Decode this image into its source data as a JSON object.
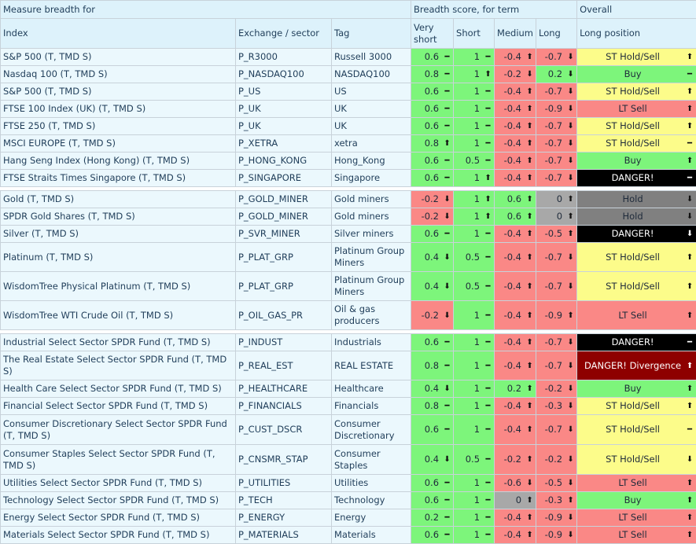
{
  "header": {
    "measure": "Measure breadth for",
    "breadth": "Breadth score, for term",
    "overall": "Overall",
    "index": "Index",
    "exchange": "Exchange / sector",
    "tag": "Tag",
    "very_short": "Very short",
    "short": "Short",
    "medium": "Medium",
    "long": "Long",
    "long_position": "Long position"
  },
  "colors": {
    "green": "#7df57b",
    "red": "#fa8886",
    "gray": "#a8a8a8",
    "yellow": "#fcfc8a",
    "dark_gray": "#808080",
    "black": "#000000",
    "dark_red": "#8e0000"
  },
  "groups": [
    [
      {
        "index": "S&P 500 (T, TMD S)",
        "exchange": "P_R3000",
        "tag": "Russell 3000",
        "vs": {
          "v": "0.6",
          "a": "flat",
          "c": "g"
        },
        "s": {
          "v": "1",
          "a": "flat",
          "c": "g"
        },
        "m": {
          "v": "-0.4",
          "a": "up",
          "c": "r"
        },
        "l": {
          "v": "-0.7",
          "a": "down",
          "c": "r"
        },
        "pos": {
          "t": "ST Hold/Sell",
          "a": "up",
          "c": "y"
        }
      },
      {
        "index": "Nasdaq 100 (T, TMD S)",
        "exchange": "P_NASDAQ100",
        "tag": "NASDAQ100",
        "vs": {
          "v": "0.8",
          "a": "flat",
          "c": "g"
        },
        "s": {
          "v": "1",
          "a": "up",
          "c": "g"
        },
        "m": {
          "v": "-0.2",
          "a": "down",
          "c": "r"
        },
        "l": {
          "v": "0.2",
          "a": "down",
          "c": "g"
        },
        "pos": {
          "t": "Buy",
          "a": "flat",
          "c": "g"
        }
      },
      {
        "index": "S&P 500 (T, TMD S)",
        "exchange": "P_US",
        "tag": "US",
        "vs": {
          "v": "0.6",
          "a": "flat",
          "c": "g"
        },
        "s": {
          "v": "1",
          "a": "flat",
          "c": "g"
        },
        "m": {
          "v": "-0.4",
          "a": "up",
          "c": "r"
        },
        "l": {
          "v": "-0.7",
          "a": "down",
          "c": "r"
        },
        "pos": {
          "t": "ST Hold/Sell",
          "a": "up",
          "c": "y"
        }
      },
      {
        "index": "FTSE 100 Index (UK) (T, TMD S)",
        "exchange": "P_UK",
        "tag": "UK",
        "vs": {
          "v": "0.6",
          "a": "flat",
          "c": "g"
        },
        "s": {
          "v": "1",
          "a": "flat",
          "c": "g"
        },
        "m": {
          "v": "-0.4",
          "a": "up",
          "c": "r"
        },
        "l": {
          "v": "-0.9",
          "a": "down",
          "c": "r"
        },
        "pos": {
          "t": "LT Sell",
          "a": "up",
          "c": "r"
        }
      },
      {
        "index": "FTSE 250 (T, TMD S)",
        "exchange": "P_UK",
        "tag": "UK",
        "vs": {
          "v": "0.6",
          "a": "flat",
          "c": "g"
        },
        "s": {
          "v": "1",
          "a": "flat",
          "c": "g"
        },
        "m": {
          "v": "-0.4",
          "a": "up",
          "c": "r"
        },
        "l": {
          "v": "-0.7",
          "a": "down",
          "c": "r"
        },
        "pos": {
          "t": "ST Hold/Sell",
          "a": "up",
          "c": "y"
        }
      },
      {
        "index": "MSCI EUROPE (T, TMD S)",
        "exchange": "P_XETRA",
        "tag": "xetra",
        "vs": {
          "v": "0.8",
          "a": "up",
          "c": "g"
        },
        "s": {
          "v": "1",
          "a": "flat",
          "c": "g"
        },
        "m": {
          "v": "-0.4",
          "a": "up",
          "c": "r"
        },
        "l": {
          "v": "-0.7",
          "a": "down",
          "c": "r"
        },
        "pos": {
          "t": "ST Hold/Sell",
          "a": "flat",
          "c": "y"
        }
      },
      {
        "index": "Hang Seng Index (Hong Kong) (T, TMD S)",
        "exchange": "P_HONG_KONG",
        "tag": "Hong_Kong",
        "vs": {
          "v": "0.6",
          "a": "flat",
          "c": "g"
        },
        "s": {
          "v": "0.5",
          "a": "flat",
          "c": "g"
        },
        "m": {
          "v": "-0.4",
          "a": "up",
          "c": "r"
        },
        "l": {
          "v": "-0.7",
          "a": "down",
          "c": "r"
        },
        "pos": {
          "t": "Buy",
          "a": "up",
          "c": "g"
        }
      },
      {
        "index": "FTSE Straits Times Singapore (T, TMD S)",
        "exchange": "P_SINGAPORE",
        "tag": "Singapore",
        "vs": {
          "v": "0.6",
          "a": "flat",
          "c": "g"
        },
        "s": {
          "v": "1",
          "a": "up",
          "c": "g"
        },
        "m": {
          "v": "-0.4",
          "a": "up",
          "c": "r"
        },
        "l": {
          "v": "-0.7",
          "a": "down",
          "c": "r"
        },
        "pos": {
          "t": "DANGER!",
          "a": "flat",
          "c": "bk"
        }
      }
    ],
    [
      {
        "index": "Gold (T, TMD S)",
        "exchange": "P_GOLD_MINER",
        "tag": "Gold miners",
        "vs": {
          "v": "-0.2",
          "a": "down",
          "c": "r"
        },
        "s": {
          "v": "1",
          "a": "up",
          "c": "g"
        },
        "m": {
          "v": "0.6",
          "a": "up",
          "c": "g"
        },
        "l": {
          "v": "0",
          "a": "up",
          "c": "gr"
        },
        "pos": {
          "t": "Hold",
          "a": "down",
          "c": "dg"
        }
      },
      {
        "index": "SPDR Gold Shares (T, TMD S)",
        "exchange": "P_GOLD_MINER",
        "tag": "Gold miners",
        "vs": {
          "v": "-0.2",
          "a": "down",
          "c": "r"
        },
        "s": {
          "v": "1",
          "a": "up",
          "c": "g"
        },
        "m": {
          "v": "0.6",
          "a": "up",
          "c": "g"
        },
        "l": {
          "v": "0",
          "a": "up",
          "c": "gr"
        },
        "pos": {
          "t": "Hold",
          "a": "down",
          "c": "dg"
        }
      },
      {
        "index": "Silver (T, TMD S)",
        "exchange": "P_SVR_MINER",
        "tag": "Silver miners",
        "vs": {
          "v": "0.6",
          "a": "flat",
          "c": "g"
        },
        "s": {
          "v": "1",
          "a": "flat",
          "c": "g"
        },
        "m": {
          "v": "-0.4",
          "a": "up",
          "c": "r"
        },
        "l": {
          "v": "-0.5",
          "a": "up",
          "c": "r"
        },
        "pos": {
          "t": "DANGER!",
          "a": "down",
          "c": "bk"
        }
      },
      {
        "index": "Platinum (T, TMD S)",
        "exchange": "P_PLAT_GRP",
        "tag": "Platinum Group Miners",
        "vs": {
          "v": "0.4",
          "a": "down",
          "c": "g"
        },
        "s": {
          "v": "0.5",
          "a": "flat",
          "c": "g"
        },
        "m": {
          "v": "-0.4",
          "a": "up",
          "c": "r"
        },
        "l": {
          "v": "-0.7",
          "a": "down",
          "c": "r"
        },
        "pos": {
          "t": "ST Hold/Sell",
          "a": "up",
          "c": "y"
        }
      },
      {
        "index": "WisdomTree Physical Platinum (T, TMD S)",
        "exchange": "P_PLAT_GRP",
        "tag": "Platinum Group Miners",
        "vs": {
          "v": "0.4",
          "a": "down",
          "c": "g"
        },
        "s": {
          "v": "0.5",
          "a": "flat",
          "c": "g"
        },
        "m": {
          "v": "-0.4",
          "a": "up",
          "c": "r"
        },
        "l": {
          "v": "-0.7",
          "a": "down",
          "c": "r"
        },
        "pos": {
          "t": "ST Hold/Sell",
          "a": "up",
          "c": "y"
        }
      },
      {
        "index": "WisdomTree WTI Crude Oil (T, TMD S)",
        "exchange": "P_OIL_GAS_PR",
        "tag": "Oil & gas producers",
        "vs": {
          "v": "-0.2",
          "a": "down",
          "c": "r"
        },
        "s": {
          "v": "1",
          "a": "flat",
          "c": "g"
        },
        "m": {
          "v": "-0.4",
          "a": "up",
          "c": "r"
        },
        "l": {
          "v": "-0.9",
          "a": "up",
          "c": "r"
        },
        "pos": {
          "t": "LT Sell",
          "a": "up",
          "c": "r"
        }
      }
    ],
    [
      {
        "index": "Industrial Select Sector SPDR Fund (T, TMD S)",
        "exchange": "P_INDUST",
        "tag": "Industrials",
        "vs": {
          "v": "0.6",
          "a": "flat",
          "c": "g"
        },
        "s": {
          "v": "1",
          "a": "flat",
          "c": "g"
        },
        "m": {
          "v": "-0.4",
          "a": "up",
          "c": "r"
        },
        "l": {
          "v": "-0.7",
          "a": "down",
          "c": "r"
        },
        "pos": {
          "t": "DANGER!",
          "a": "flat",
          "c": "bk"
        }
      },
      {
        "index": "The Real Estate Select Sector SPDR Fund (T, TMD S)",
        "exchange": "P_REAL_EST",
        "tag": "REAL ESTATE",
        "vs": {
          "v": "0.8",
          "a": "flat",
          "c": "g"
        },
        "s": {
          "v": "1",
          "a": "flat",
          "c": "g"
        },
        "m": {
          "v": "-0.4",
          "a": "up",
          "c": "r"
        },
        "l": {
          "v": "-0.7",
          "a": "down",
          "c": "r"
        },
        "pos": {
          "t": "DANGER! Divergence",
          "a": "up",
          "c": "dr"
        }
      },
      {
        "index": "Health Care Select Sector SPDR Fund (T, TMD S)",
        "exchange": "P_HEALTHCARE",
        "tag": "Healthcare",
        "vs": {
          "v": "0.4",
          "a": "down",
          "c": "g"
        },
        "s": {
          "v": "1",
          "a": "flat",
          "c": "g"
        },
        "m": {
          "v": "0.2",
          "a": "up",
          "c": "g"
        },
        "l": {
          "v": "-0.2",
          "a": "down",
          "c": "r"
        },
        "pos": {
          "t": "Buy",
          "a": "up",
          "c": "g"
        }
      },
      {
        "index": "Financial Select Sector SPDR Fund (T, TMD S)",
        "exchange": "P_FINANCIALS",
        "tag": "Financials",
        "vs": {
          "v": "0.8",
          "a": "flat",
          "c": "g"
        },
        "s": {
          "v": "1",
          "a": "flat",
          "c": "g"
        },
        "m": {
          "v": "-0.4",
          "a": "up",
          "c": "r"
        },
        "l": {
          "v": "-0.3",
          "a": "down",
          "c": "r"
        },
        "pos": {
          "t": "ST Hold/Sell",
          "a": "up",
          "c": "y"
        }
      },
      {
        "index": "Consumer Discretionary Select Sector SPDR Fund (T, TMD S)",
        "exchange": "P_CUST_DSCR",
        "tag": "Consumer Discretionary",
        "vs": {
          "v": "0.6",
          "a": "flat",
          "c": "g"
        },
        "s": {
          "v": "1",
          "a": "flat",
          "c": "g"
        },
        "m": {
          "v": "-0.4",
          "a": "up",
          "c": "r"
        },
        "l": {
          "v": "-0.7",
          "a": "down",
          "c": "r"
        },
        "pos": {
          "t": "ST Hold/Sell",
          "a": "flat",
          "c": "y"
        }
      },
      {
        "index": "Consumer Staples Select Sector SPDR Fund (T, TMD S)",
        "exchange": "P_CNSMR_STAP",
        "tag": "Consumer Staples",
        "vs": {
          "v": "0.4",
          "a": "down",
          "c": "g"
        },
        "s": {
          "v": "0.5",
          "a": "flat",
          "c": "g"
        },
        "m": {
          "v": "-0.2",
          "a": "up",
          "c": "r"
        },
        "l": {
          "v": "-0.2",
          "a": "down",
          "c": "r"
        },
        "pos": {
          "t": "ST Hold/Sell",
          "a": "down",
          "c": "y"
        }
      },
      {
        "index": "Utilities Select Sector SPDR Fund (T, TMD S)",
        "exchange": "P_UTILITIES",
        "tag": "Utilities",
        "vs": {
          "v": "0.6",
          "a": "flat",
          "c": "g"
        },
        "s": {
          "v": "1",
          "a": "flat",
          "c": "g"
        },
        "m": {
          "v": "-0.6",
          "a": "down",
          "c": "r"
        },
        "l": {
          "v": "-0.5",
          "a": "down",
          "c": "r"
        },
        "pos": {
          "t": "LT Sell",
          "a": "up",
          "c": "r"
        }
      },
      {
        "index": "Technology Select Sector SPDR Fund (T, TMD S)",
        "exchange": "P_TECH",
        "tag": "Technology",
        "vs": {
          "v": "0.6",
          "a": "flat",
          "c": "g"
        },
        "s": {
          "v": "1",
          "a": "flat",
          "c": "g"
        },
        "m": {
          "v": "0",
          "a": "up",
          "c": "gr"
        },
        "l": {
          "v": "-0.3",
          "a": "up",
          "c": "r"
        },
        "pos": {
          "t": "Buy",
          "a": "up",
          "c": "g"
        }
      },
      {
        "index": "Energy Select Sector SPDR Fund (T, TMD S)",
        "exchange": "P_ENERGY",
        "tag": "Energy",
        "vs": {
          "v": "0.2",
          "a": "flat",
          "c": "g"
        },
        "s": {
          "v": "1",
          "a": "flat",
          "c": "g"
        },
        "m": {
          "v": "-0.4",
          "a": "up",
          "c": "r"
        },
        "l": {
          "v": "-0.9",
          "a": "down",
          "c": "r"
        },
        "pos": {
          "t": "LT Sell",
          "a": "up",
          "c": "r"
        }
      },
      {
        "index": "Materials Select Sector SPDR Fund (T, TMD S)",
        "exchange": "P_MATERIALS",
        "tag": "Materials",
        "vs": {
          "v": "0.6",
          "a": "flat",
          "c": "g"
        },
        "s": {
          "v": "1",
          "a": "flat",
          "c": "g"
        },
        "m": {
          "v": "-0.4",
          "a": "up",
          "c": "r"
        },
        "l": {
          "v": "-0.9",
          "a": "down",
          "c": "r"
        },
        "pos": {
          "t": "LT Sell",
          "a": "up",
          "c": "r"
        }
      }
    ]
  ]
}
